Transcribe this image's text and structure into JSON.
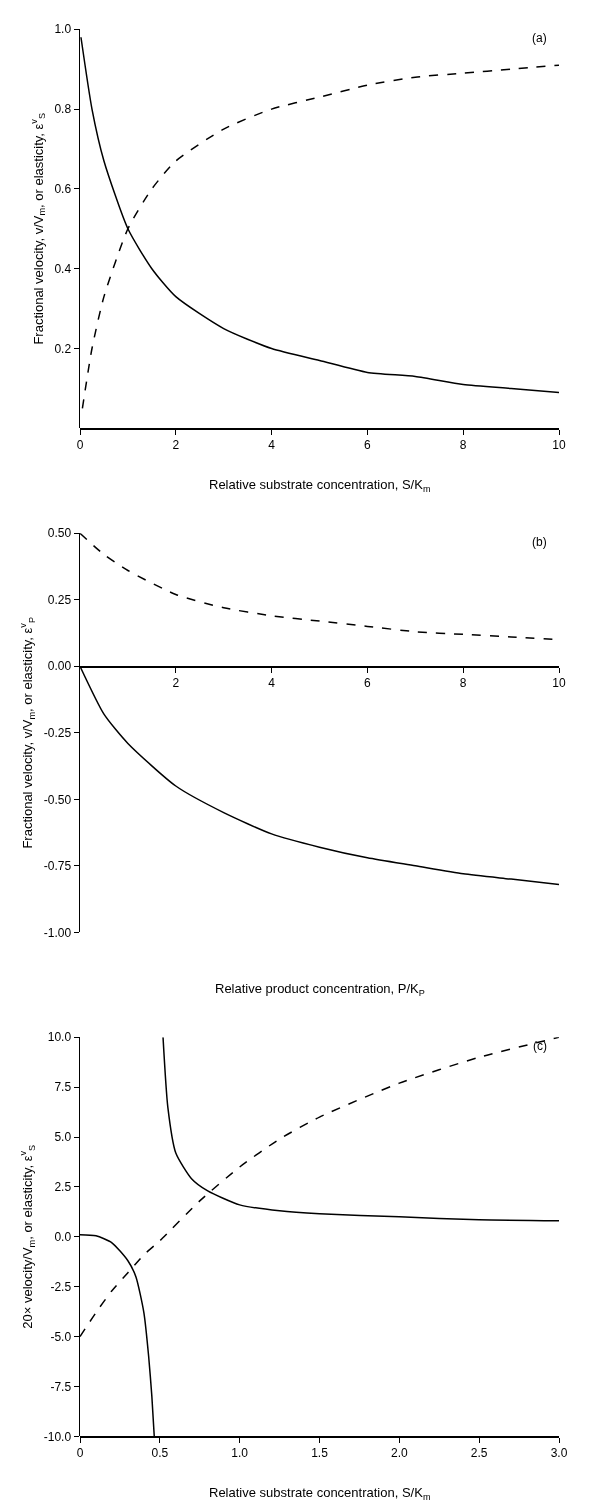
{
  "chart_data": [
    {
      "type": "line",
      "xlabel": "Relative substrate concentration, S/K$_{m}$",
      "ylabel": "Fractional velocity, v/V$_{m}$, or elasticity, ε$^{v}$$_{S}$",
      "annotations": [
        "(a)"
      ],
      "xlim": [
        0,
        10
      ],
      "ylim": [
        0,
        1
      ],
      "xticks": [
        0,
        2,
        4,
        6,
        8,
        10
      ],
      "yticks": [
        0.2,
        0.4,
        0.6,
        {
          "value": 0.8,
          "label": "0.8"
        },
        {
          "value": 1,
          "label": "1.0"
        }
      ],
      "series": [
        {
          "color": "#000000",
          "line_style": "solid",
          "x": [
            0.02,
            0.25,
            0.5,
            1,
            1.5,
            2,
            3,
            4,
            5,
            6,
            7,
            8,
            9,
            10
          ],
          "values": [
            0.98,
            0.8,
            0.67,
            0.5,
            0.4,
            0.33,
            0.25,
            0.2,
            0.17,
            0.14,
            0.13,
            0.11,
            0.1,
            0.09
          ]
        },
        {
          "color": "#000000",
          "line_style": "dashed",
          "x": [
            0.05,
            0.25,
            0.5,
            1,
            1.5,
            2,
            3,
            4,
            5,
            6,
            7,
            8,
            9,
            10
          ],
          "values": [
            0.05,
            0.2,
            0.33,
            0.5,
            0.6,
            0.67,
            0.75,
            0.8,
            0.83,
            0.86,
            0.88,
            0.89,
            0.9,
            0.91
          ]
        }
      ]
    },
    {
      "type": "line",
      "xlabel": "Relative product concentration, P/K$_{P}$",
      "ylabel": "Fractional velocity, v/V$_{m}$, or elasticity, ε$^{v}$$_{P}$",
      "annotations": [
        "(b)"
      ],
      "xlim": [
        0,
        10
      ],
      "ylim": [
        -1,
        0.5
      ],
      "xticks": [
        2,
        4,
        6,
        8,
        10
      ],
      "yticks": [
        {
          "value": 0.5,
          "label": "0.50"
        },
        {
          "value": 0.25,
          "label": "0.25"
        },
        {
          "value": 0,
          "label": "0.00"
        },
        {
          "value": -0.25,
          "label": "-0.25"
        },
        {
          "value": -0.5,
          "label": "-0.50"
        },
        {
          "value": -0.75,
          "label": "-0.75"
        },
        {
          "value": -1,
          "label": "-1.00"
        }
      ],
      "series": [
        {
          "color": "#000000",
          "line_style": "solid",
          "x": [
            0,
            0.5,
            1,
            2,
            3,
            4,
            5,
            6,
            7,
            8,
            9,
            10
          ],
          "values": [
            0,
            -0.18,
            -0.29,
            -0.45,
            -0.55,
            -0.63,
            -0.68,
            -0.72,
            -0.75,
            -0.78,
            -0.8,
            -0.82
          ]
        },
        {
          "color": "#000000",
          "line_style": "dashed",
          "x": [
            0,
            0.5,
            1,
            2,
            3,
            4,
            5,
            6,
            7,
            8,
            9,
            10
          ],
          "values": [
            0.5,
            0.42,
            0.36,
            0.27,
            0.22,
            0.19,
            0.17,
            0.15,
            0.13,
            0.12,
            0.11,
            0.1
          ]
        }
      ]
    },
    {
      "type": "line",
      "xlabel": "Relative substrate concentration, S/K$_{m}$",
      "ylabel": "20× velocity/V$_{m}$, or elasticity, ε$^{v}$$_{S}$",
      "annotations": [
        "(c)"
      ],
      "xlim": [
        0,
        3
      ],
      "ylim": [
        -10,
        10
      ],
      "xticks": [
        0,
        {
          "value": 0.5,
          "label": "0.5"
        },
        {
          "value": 1,
          "label": "1.0"
        },
        {
          "value": 1.5,
          "label": "1.5"
        },
        {
          "value": 2,
          "label": "2.0"
        },
        {
          "value": 2.5,
          "label": "2.5"
        },
        {
          "value": 3,
          "label": "3.0"
        }
      ],
      "yticks": [
        {
          "value": 10,
          "label": "10.0"
        },
        {
          "value": 7.5,
          "label": "7.5"
        },
        {
          "value": 5,
          "label": "5.0"
        },
        {
          "value": 2.5,
          "label": "2.5"
        },
        {
          "value": 0,
          "label": "0.0"
        },
        {
          "value": -2.5,
          "label": "-2.5"
        },
        {
          "value": -5,
          "label": "-5.0"
        },
        {
          "value": -7.5,
          "label": "-7.5"
        },
        {
          "value": -10,
          "label": "-10.0"
        }
      ],
      "series": [
        {
          "color": "#000000",
          "line_style": "solid",
          "x": [
            0,
            0.1,
            0.2,
            0.3,
            0.35,
            0.4,
            0.43,
            0.45,
            0.465
          ],
          "values": [
            0.1,
            0.05,
            -0.3,
            -1.2,
            -2,
            -3.8,
            -6,
            -8,
            -10
          ]
        },
        {
          "color": "#000000",
          "line_style": "solid",
          "x": [
            0.52,
            0.55,
            0.6,
            0.7,
            0.8,
            1,
            1.25,
            1.5,
            2,
            2.5,
            3
          ],
          "values": [
            10,
            6.5,
            4.2,
            2.9,
            2.3,
            1.6,
            1.3,
            1.15,
            1,
            0.85,
            0.8
          ]
        },
        {
          "color": "#000000",
          "line_style": "dashed",
          "x": [
            0,
            0.1,
            0.2,
            0.3,
            0.4,
            0.5,
            0.75,
            1,
            1.25,
            1.5,
            2,
            2.5,
            3
          ],
          "values": [
            -5,
            -3.8,
            -2.7,
            -1.8,
            -0.9,
            -0.2,
            1.8,
            3.5,
            4.9,
            6,
            7.7,
            9,
            10
          ]
        }
      ]
    }
  ]
}
